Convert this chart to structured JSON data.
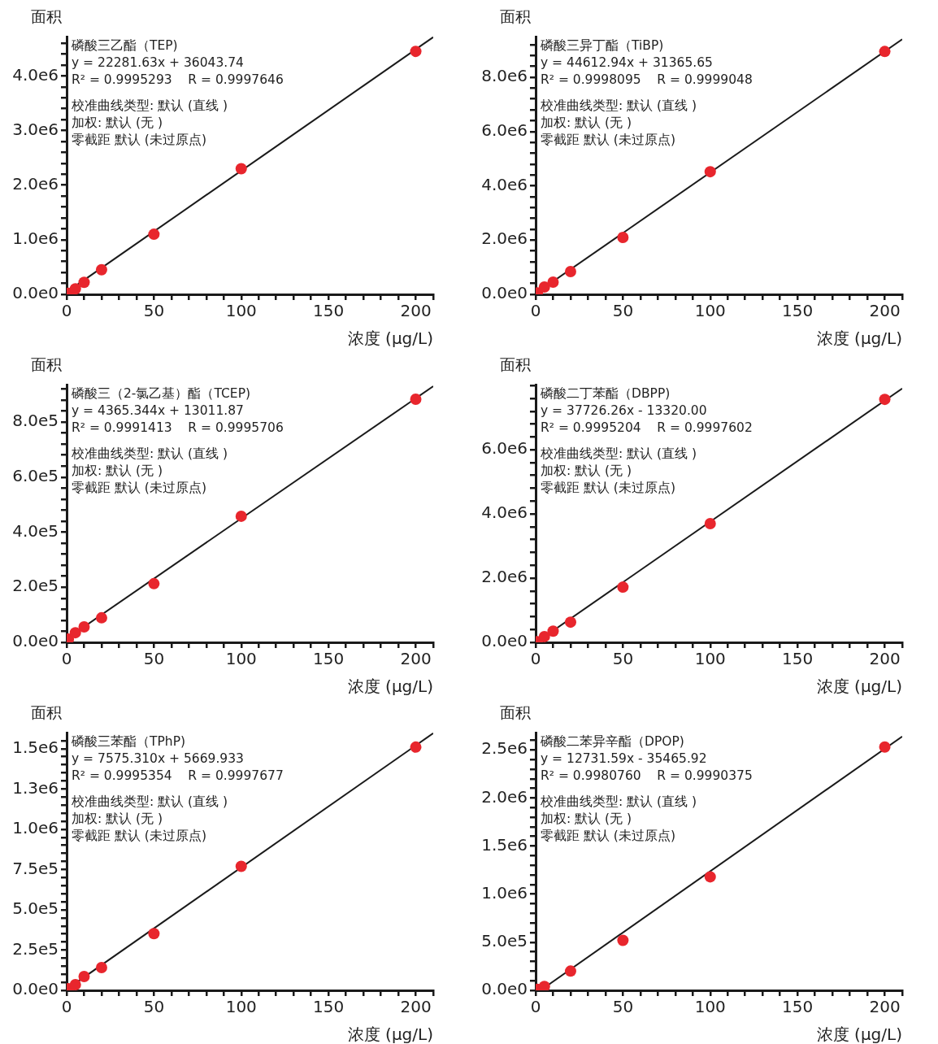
{
  "chart_data": [
    {
      "type": "scatter",
      "xlabel": "浓度 (μg/L)",
      "ylabel": "面积",
      "marker": "circle",
      "annotations": [
        "磷酸三乙酯（TEP)",
        "y = 22281.63x + 36043.74",
        "R² = 0.9995293    R = 0.9997646",
        "校准曲线类型: 默认 (直线 )",
        "加权: 默认 (无 )",
        "零截距 默认 (未过原点)"
      ],
      "xlim": [
        0,
        210
      ],
      "xticks": [
        0,
        {
          "value": 10,
          "label": null
        },
        {
          "value": 20,
          "label": null
        },
        {
          "value": 30,
          "label": null
        },
        {
          "value": 40,
          "label": null
        },
        50,
        {
          "value": 60,
          "label": null
        },
        {
          "value": 70,
          "label": null
        },
        {
          "value": 80,
          "label": null
        },
        {
          "value": 90,
          "label": null
        },
        100,
        {
          "value": 110,
          "label": null
        },
        {
          "value": 120,
          "label": null
        },
        {
          "value": 130,
          "label": null
        },
        {
          "value": 140,
          "label": null
        },
        150,
        {
          "value": 160,
          "label": null
        },
        {
          "value": 170,
          "label": null
        },
        {
          "value": 180,
          "label": null
        },
        {
          "value": 190,
          "label": null
        },
        200,
        {
          "value": 210,
          "label": null
        }
      ],
      "ylim": [
        0,
        4720000
      ],
      "yticks": [
        {
          "value": 0,
          "label": "0.0e0"
        },
        {
          "value": 200000,
          "label": null
        },
        {
          "value": 400000,
          "label": null
        },
        {
          "value": 600000,
          "label": null
        },
        {
          "value": 800000,
          "label": null
        },
        {
          "value": 1000000,
          "label": "1.0e6"
        },
        {
          "value": 1200000,
          "label": null
        },
        {
          "value": 1400000,
          "label": null
        },
        {
          "value": 1600000,
          "label": null
        },
        {
          "value": 1800000,
          "label": null
        },
        {
          "value": 2000000,
          "label": "2.0e6"
        },
        {
          "value": 2200000,
          "label": null
        },
        {
          "value": 2400000,
          "label": null
        },
        {
          "value": 2600000,
          "label": null
        },
        {
          "value": 2800000,
          "label": null
        },
        {
          "value": 3000000,
          "label": "3.0e6"
        },
        {
          "value": 3200000,
          "label": null
        },
        {
          "value": 3400000,
          "label": null
        },
        {
          "value": 3600000,
          "label": null
        },
        {
          "value": 3800000,
          "label": null
        },
        {
          "value": 4000000,
          "label": "4.0e6"
        },
        {
          "value": 4200000,
          "label": null
        },
        {
          "value": 4400000,
          "label": null
        },
        {
          "value": 4600000,
          "label": null
        }
      ],
      "series": [
        {
          "type": "scatter",
          "color": "#e8262d",
          "x": [
            1,
            5,
            10,
            20,
            50,
            100,
            200
          ],
          "values": [
            20000,
            100000,
            220000,
            450000,
            1100000,
            2300000,
            4450000
          ]
        },
        {
          "type": "line",
          "color": "#1a1a1a",
          "marker": "none",
          "x": [
            0,
            210
          ],
          "values": [
            40000,
            4710000
          ]
        }
      ]
    },
    {
      "type": "scatter",
      "xlabel": "浓度 (μg/L)",
      "ylabel": "面积",
      "marker": "circle",
      "annotations": [
        "磷酸三异丁酯（TiBP)",
        "y = 44612.94x + 31365.65",
        "R² = 0.9998095    R = 0.9999048",
        "校准曲线类型: 默认 (直线 )",
        "加权: 默认 (无 )",
        "零截距 默认 (未过原点)"
      ],
      "xlim": [
        0,
        210
      ],
      "xticks": [
        0,
        {
          "value": 10,
          "label": null
        },
        {
          "value": 20,
          "label": null
        },
        {
          "value": 30,
          "label": null
        },
        {
          "value": 40,
          "label": null
        },
        50,
        {
          "value": 60,
          "label": null
        },
        {
          "value": 70,
          "label": null
        },
        {
          "value": 80,
          "label": null
        },
        {
          "value": 90,
          "label": null
        },
        100,
        {
          "value": 110,
          "label": null
        },
        {
          "value": 120,
          "label": null
        },
        {
          "value": 130,
          "label": null
        },
        {
          "value": 140,
          "label": null
        },
        150,
        {
          "value": 160,
          "label": null
        },
        {
          "value": 170,
          "label": null
        },
        {
          "value": 180,
          "label": null
        },
        {
          "value": 190,
          "label": null
        },
        200,
        {
          "value": 210,
          "label": null
        }
      ],
      "ylim": [
        0,
        9500000
      ],
      "yticks": [
        {
          "value": 0,
          "label": "0.0e0"
        },
        {
          "value": 400000,
          "label": null
        },
        {
          "value": 800000,
          "label": null
        },
        {
          "value": 1200000,
          "label": null
        },
        {
          "value": 1600000,
          "label": null
        },
        {
          "value": 2000000,
          "label": "2.0e6"
        },
        {
          "value": 2400000,
          "label": null
        },
        {
          "value": 2800000,
          "label": null
        },
        {
          "value": 3200000,
          "label": null
        },
        {
          "value": 3600000,
          "label": null
        },
        {
          "value": 4000000,
          "label": "4.0e6"
        },
        {
          "value": 4400000,
          "label": null
        },
        {
          "value": 4800000,
          "label": null
        },
        {
          "value": 5200000,
          "label": null
        },
        {
          "value": 5600000,
          "label": null
        },
        {
          "value": 6000000,
          "label": "6.0e6"
        },
        {
          "value": 6400000,
          "label": null
        },
        {
          "value": 6800000,
          "label": null
        },
        {
          "value": 7200000,
          "label": null
        },
        {
          "value": 7600000,
          "label": null
        },
        {
          "value": 8000000,
          "label": "8.0e6"
        },
        {
          "value": 8400000,
          "label": null
        },
        {
          "value": 8800000,
          "label": null
        },
        {
          "value": 9200000,
          "label": null
        }
      ],
      "series": [
        {
          "type": "scatter",
          "color": "#e8262d",
          "x": [
            1,
            5,
            10,
            20,
            50,
            100,
            200
          ],
          "values": [
            50000,
            270000,
            450000,
            840000,
            2100000,
            4520000,
            8950000
          ]
        },
        {
          "type": "line",
          "color": "#1a1a1a",
          "marker": "none",
          "x": [
            0,
            210
          ],
          "values": [
            30000,
            9400000
          ]
        }
      ]
    },
    {
      "type": "scatter",
      "xlabel": "浓度 (μg/L)",
      "ylabel": "面积",
      "marker": "circle",
      "annotations": [
        "磷酸三（2-氯乙基）酯（TCEP)",
        "y = 4365.344x + 13011.87",
        "R² = 0.9991413    R = 0.9995706",
        "校准曲线类型: 默认 (直线 )",
        "加权: 默认 (无 )",
        "零截距 默认 (未过原点)"
      ],
      "xlim": [
        0,
        210
      ],
      "xticks": [
        0,
        {
          "value": 10,
          "label": null
        },
        {
          "value": 20,
          "label": null
        },
        {
          "value": 30,
          "label": null
        },
        {
          "value": 40,
          "label": null
        },
        50,
        {
          "value": 60,
          "label": null
        },
        {
          "value": 70,
          "label": null
        },
        {
          "value": 80,
          "label": null
        },
        {
          "value": 90,
          "label": null
        },
        100,
        {
          "value": 110,
          "label": null
        },
        {
          "value": 120,
          "label": null
        },
        {
          "value": 130,
          "label": null
        },
        {
          "value": 140,
          "label": null
        },
        150,
        {
          "value": 160,
          "label": null
        },
        {
          "value": 170,
          "label": null
        },
        {
          "value": 180,
          "label": null
        },
        {
          "value": 190,
          "label": null
        },
        200,
        {
          "value": 210,
          "label": null
        }
      ],
      "ylim": [
        0,
        936000
      ],
      "yticks": [
        {
          "value": 0,
          "label": "0.0e0"
        },
        {
          "value": 40000,
          "label": null
        },
        {
          "value": 80000,
          "label": null
        },
        {
          "value": 120000,
          "label": null
        },
        {
          "value": 160000,
          "label": null
        },
        {
          "value": 200000,
          "label": "2.0e5"
        },
        {
          "value": 240000,
          "label": null
        },
        {
          "value": 280000,
          "label": null
        },
        {
          "value": 320000,
          "label": null
        },
        {
          "value": 360000,
          "label": null
        },
        {
          "value": 400000,
          "label": "4.0e5"
        },
        {
          "value": 440000,
          "label": null
        },
        {
          "value": 480000,
          "label": null
        },
        {
          "value": 520000,
          "label": null
        },
        {
          "value": 560000,
          "label": null
        },
        {
          "value": 600000,
          "label": "6.0e5"
        },
        {
          "value": 640000,
          "label": null
        },
        {
          "value": 680000,
          "label": null
        },
        {
          "value": 720000,
          "label": null
        },
        {
          "value": 760000,
          "label": null
        },
        {
          "value": 800000,
          "label": "8.0e5"
        },
        {
          "value": 840000,
          "label": null
        },
        {
          "value": 880000,
          "label": null
        },
        {
          "value": 920000,
          "label": null
        }
      ],
      "series": [
        {
          "type": "scatter",
          "color": "#e8262d",
          "x": [
            1,
            5,
            10,
            20,
            50,
            100,
            200
          ],
          "values": [
            12000,
            35000,
            56000,
            89000,
            213000,
            458000,
            883000
          ]
        },
        {
          "type": "line",
          "color": "#1a1a1a",
          "marker": "none",
          "x": [
            0,
            210
          ],
          "values": [
            13000,
            930000
          ]
        }
      ]
    },
    {
      "type": "scatter",
      "xlabel": "浓度 (μg/L)",
      "ylabel": "面积",
      "marker": "circle",
      "annotations": [
        "磷酸二丁苯酯（DBPP)",
        "y = 37726.26x - 13320.00",
        "R² = 0.9995204    R = 0.9997602",
        "校准曲线类型: 默认 (直线 )",
        "加权: 默认 (无 )",
        "零截距 默认 (未过原点)"
      ],
      "xlim": [
        0,
        210
      ],
      "xticks": [
        0,
        {
          "value": 10,
          "label": null
        },
        {
          "value": 20,
          "label": null
        },
        {
          "value": 30,
          "label": null
        },
        {
          "value": 40,
          "label": null
        },
        50,
        {
          "value": 60,
          "label": null
        },
        {
          "value": 70,
          "label": null
        },
        {
          "value": 80,
          "label": null
        },
        {
          "value": 90,
          "label": null
        },
        100,
        {
          "value": 110,
          "label": null
        },
        {
          "value": 120,
          "label": null
        },
        {
          "value": 130,
          "label": null
        },
        {
          "value": 140,
          "label": null
        },
        150,
        {
          "value": 160,
          "label": null
        },
        {
          "value": 170,
          "label": null
        },
        {
          "value": 180,
          "label": null
        },
        {
          "value": 190,
          "label": null
        },
        200,
        {
          "value": 210,
          "label": null
        }
      ],
      "ylim": [
        0,
        8030000
      ],
      "yticks": [
        {
          "value": 0,
          "label": "0.0e0"
        },
        {
          "value": 400000,
          "label": null
        },
        {
          "value": 800000,
          "label": null
        },
        {
          "value": 1200000,
          "label": null
        },
        {
          "value": 1600000,
          "label": null
        },
        {
          "value": 2000000,
          "label": "2.0e6"
        },
        {
          "value": 2400000,
          "label": null
        },
        {
          "value": 2800000,
          "label": null
        },
        {
          "value": 3200000,
          "label": null
        },
        {
          "value": 3600000,
          "label": null
        },
        {
          "value": 4000000,
          "label": "4.0e6"
        },
        {
          "value": 4400000,
          "label": null
        },
        {
          "value": 4800000,
          "label": null
        },
        {
          "value": 5200000,
          "label": null
        },
        {
          "value": 5600000,
          "label": null
        },
        {
          "value": 6000000,
          "label": "6.0e6"
        },
        {
          "value": 6400000,
          "label": null
        },
        {
          "value": 6800000,
          "label": null
        },
        {
          "value": 7200000,
          "label": null
        },
        {
          "value": 7600000,
          "label": null
        },
        {
          "value": 8000000,
          "label": null
        }
      ],
      "series": [
        {
          "type": "scatter",
          "color": "#e8262d",
          "x": [
            1,
            5,
            10,
            20,
            50,
            100,
            200
          ],
          "values": [
            20000,
            180000,
            350000,
            630000,
            1720000,
            3700000,
            7570000
          ]
        },
        {
          "type": "line",
          "color": "#1a1a1a",
          "marker": "none",
          "x": [
            0.4,
            210
          ],
          "values": [
            0,
            7910000
          ]
        }
      ]
    },
    {
      "type": "scatter",
      "xlabel": "浓度 (μg/L)",
      "ylabel": "面积",
      "marker": "circle",
      "annotations": [
        "磷酸三苯酯（TPhP)",
        "y = 7575.310x + 5669.933",
        "R² = 0.9995354    R = 0.9997677",
        "校准曲线类型: 默认 (直线 )",
        "加权: 默认 (无 )",
        "零截距 默认 (未过原点)"
      ],
      "xlim": [
        0,
        210
      ],
      "xticks": [
        0,
        {
          "value": 10,
          "label": null
        },
        {
          "value": 20,
          "label": null
        },
        {
          "value": 30,
          "label": null
        },
        {
          "value": 40,
          "label": null
        },
        50,
        {
          "value": 60,
          "label": null
        },
        {
          "value": 70,
          "label": null
        },
        {
          "value": 80,
          "label": null
        },
        {
          "value": 90,
          "label": null
        },
        100,
        {
          "value": 110,
          "label": null
        },
        {
          "value": 120,
          "label": null
        },
        {
          "value": 130,
          "label": null
        },
        {
          "value": 140,
          "label": null
        },
        150,
        {
          "value": 160,
          "label": null
        },
        {
          "value": 170,
          "label": null
        },
        {
          "value": 180,
          "label": null
        },
        {
          "value": 190,
          "label": null
        },
        200,
        {
          "value": 210,
          "label": null
        }
      ],
      "ylim": [
        0,
        1600000
      ],
      "yticks": [
        {
          "value": 0,
          "label": "0.0e0"
        },
        {
          "value": 50000,
          "label": null
        },
        {
          "value": 100000,
          "label": null
        },
        {
          "value": 150000,
          "label": null
        },
        {
          "value": 200000,
          "label": null
        },
        {
          "value": 250000,
          "label": "2.5e5"
        },
        {
          "value": 300000,
          "label": null
        },
        {
          "value": 350000,
          "label": null
        },
        {
          "value": 400000,
          "label": null
        },
        {
          "value": 450000,
          "label": null
        },
        {
          "value": 500000,
          "label": "5.0e5"
        },
        {
          "value": 550000,
          "label": null
        },
        {
          "value": 600000,
          "label": null
        },
        {
          "value": 650000,
          "label": null
        },
        {
          "value": 700000,
          "label": null
        },
        {
          "value": 750000,
          "label": "7.5e5"
        },
        {
          "value": 800000,
          "label": null
        },
        {
          "value": 850000,
          "label": null
        },
        {
          "value": 900000,
          "label": null
        },
        {
          "value": 950000,
          "label": null
        },
        {
          "value": 1000000,
          "label": "1.0e6"
        },
        {
          "value": 1050000,
          "label": null
        },
        {
          "value": 1100000,
          "label": null
        },
        {
          "value": 1150000,
          "label": null
        },
        {
          "value": 1200000,
          "label": null
        },
        {
          "value": 1250000,
          "label": "1.3e6"
        },
        {
          "value": 1300000,
          "label": null
        },
        {
          "value": 1350000,
          "label": null
        },
        {
          "value": 1400000,
          "label": null
        },
        {
          "value": 1450000,
          "label": null
        },
        {
          "value": 1500000,
          "label": "1.5e6"
        },
        {
          "value": 1550000,
          "label": null
        }
      ],
      "series": [
        {
          "type": "scatter",
          "color": "#e8262d",
          "x": [
            1,
            5,
            10,
            20,
            50,
            100,
            200
          ],
          "values": [
            10000,
            35000,
            86000,
            141000,
            352000,
            770000,
            1510000
          ]
        },
        {
          "type": "line",
          "color": "#1a1a1a",
          "marker": "none",
          "x": [
            0,
            210
          ],
          "values": [
            6000,
            1596000
          ]
        }
      ]
    },
    {
      "type": "scatter",
      "xlabel": "浓度 (μg/L)",
      "ylabel": "面积",
      "marker": "circle",
      "annotations": [
        "磷酸二苯异辛酯（DPOP)",
        "y = 12731.59x - 35465.92",
        "R² = 0.9980760    R = 0.9990375",
        "校准曲线类型: 默认 (直线 )",
        "加权: 默认 (无 )",
        "零截距 默认 (未过原点)"
      ],
      "xlim": [
        0,
        210
      ],
      "xticks": [
        0,
        {
          "value": 10,
          "label": null
        },
        {
          "value": 20,
          "label": null
        },
        {
          "value": 30,
          "label": null
        },
        {
          "value": 40,
          "label": null
        },
        50,
        {
          "value": 60,
          "label": null
        },
        {
          "value": 70,
          "label": null
        },
        {
          "value": 80,
          "label": null
        },
        {
          "value": 90,
          "label": null
        },
        100,
        {
          "value": 110,
          "label": null
        },
        {
          "value": 120,
          "label": null
        },
        {
          "value": 130,
          "label": null
        },
        {
          "value": 140,
          "label": null
        },
        150,
        {
          "value": 160,
          "label": null
        },
        {
          "value": 170,
          "label": null
        },
        {
          "value": 180,
          "label": null
        },
        {
          "value": 190,
          "label": null
        },
        200,
        {
          "value": 210,
          "label": null
        }
      ],
      "ylim": [
        0,
        2680000
      ],
      "yticks": [
        {
          "value": 0,
          "label": "0.0e0"
        },
        {
          "value": 100000,
          "label": null
        },
        {
          "value": 200000,
          "label": null
        },
        {
          "value": 300000,
          "label": null
        },
        {
          "value": 400000,
          "label": null
        },
        {
          "value": 500000,
          "label": "5.0e5"
        },
        {
          "value": 600000,
          "label": null
        },
        {
          "value": 700000,
          "label": null
        },
        {
          "value": 800000,
          "label": null
        },
        {
          "value": 900000,
          "label": null
        },
        {
          "value": 1000000,
          "label": "1.0e6"
        },
        {
          "value": 1100000,
          "label": null
        },
        {
          "value": 1200000,
          "label": null
        },
        {
          "value": 1300000,
          "label": null
        },
        {
          "value": 1400000,
          "label": null
        },
        {
          "value": 1500000,
          "label": "1.5e6"
        },
        {
          "value": 1600000,
          "label": null
        },
        {
          "value": 1700000,
          "label": null
        },
        {
          "value": 1800000,
          "label": null
        },
        {
          "value": 1900000,
          "label": null
        },
        {
          "value": 2000000,
          "label": "2.0e6"
        },
        {
          "value": 2100000,
          "label": null
        },
        {
          "value": 2200000,
          "label": null
        },
        {
          "value": 2300000,
          "label": null
        },
        {
          "value": 2400000,
          "label": null
        },
        {
          "value": 2500000,
          "label": "2.5e6"
        },
        {
          "value": 2600000,
          "label": null
        }
      ],
      "series": [
        {
          "type": "scatter",
          "color": "#e8262d",
          "x": [
            1,
            5,
            20,
            50,
            100,
            200
          ],
          "values": [
            10000,
            40000,
            200000,
            520000,
            1180000,
            2530000
          ]
        },
        {
          "type": "line",
          "color": "#1a1a1a",
          "marker": "none",
          "x": [
            2.8,
            210
          ],
          "values": [
            0,
            2640000
          ]
        }
      ]
    }
  ]
}
